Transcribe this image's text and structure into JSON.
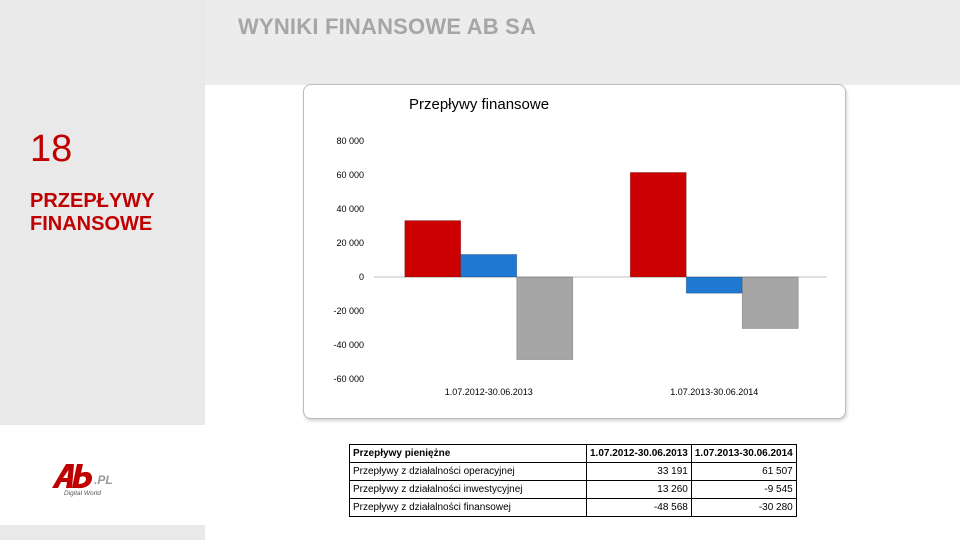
{
  "header": {
    "title": "WYNIKI FINANSOWE AB SA"
  },
  "sidebar": {
    "slide_number": "18",
    "section_title_line1": "PRZEPŁYWY",
    "section_title_line2": "FINANSOWE",
    "logo_main": "Ab",
    "logo_suffix": ".PL",
    "logo_tagline": "Digital World"
  },
  "colors": {
    "accent": "#c00000",
    "series_operating": "#cc0000",
    "series_investing": "#1f78d1",
    "series_financing": "#a6a6a6"
  },
  "chart_data": {
    "type": "bar",
    "title": "Przepływy finansowe",
    "categories": [
      "1.07.2012-30.06.2013",
      "1.07.2013-30.06.2014"
    ],
    "series": [
      {
        "values": [
          33191,
          61507
        ],
        "color": "#cc0000"
      },
      {
        "values": [
          13260,
          -9545
        ],
        "color": "#1f78d1"
      },
      {
        "values": [
          -48568,
          -30280
        ],
        "color": "#a6a6a6"
      }
    ],
    "ylim": [
      -60000,
      80000
    ],
    "yticks": [
      80000,
      60000,
      40000,
      20000,
      0,
      -20000,
      -40000,
      -60000
    ],
    "ytick_labels": [
      "80 000",
      "60 000",
      "40 000",
      "20 000",
      "0",
      "-20 000",
      "-40 000",
      "-60 000"
    ],
    "grid": false,
    "legend": "none"
  },
  "table": {
    "headers": [
      "Przepływy pieniężne",
      "1.07.2012-30.06.2013",
      "1.07.2013-30.06.2014"
    ],
    "rows": [
      [
        "Przepływy z działalności operacyjnej",
        "33 191",
        "61 507"
      ],
      [
        "Przepływy z działalności inwestycyjnej",
        "13 260",
        "-9 545"
      ],
      [
        "Przepływy z działalności finansowej",
        "-48 568",
        "-30 280"
      ]
    ]
  }
}
